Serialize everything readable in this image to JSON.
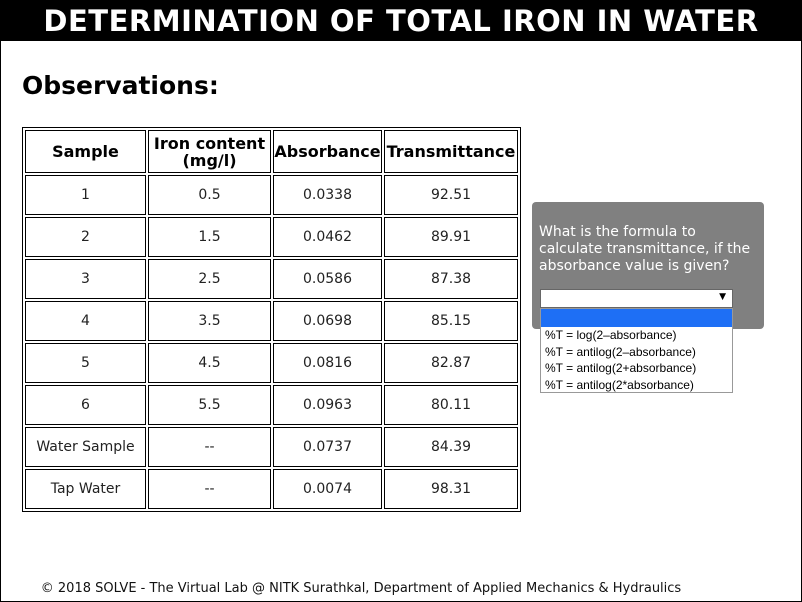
{
  "header": {
    "title": "DETERMINATION OF TOTAL IRON IN WATER"
  },
  "observations": {
    "title": "Observations:",
    "columns": [
      "Sample",
      "Iron content (mg/l)",
      "Absorbance",
      "Transmittance"
    ],
    "rows": [
      [
        "1",
        "0.5",
        "0.0338",
        "92.51"
      ],
      [
        "2",
        "1.5",
        "0.0462",
        "89.91"
      ],
      [
        "3",
        "2.5",
        "0.0586",
        "87.38"
      ],
      [
        "4",
        "3.5",
        "0.0698",
        "85.15"
      ],
      [
        "5",
        "4.5",
        "0.0816",
        "82.87"
      ],
      [
        "6",
        "5.5",
        "0.0963",
        "80.11"
      ],
      [
        "Water Sample",
        "--",
        "0.0737",
        "84.39"
      ],
      [
        "Tap Water",
        "--",
        "0.0074",
        "98.31"
      ]
    ]
  },
  "quiz": {
    "question": "What is the formula to calculate transmittance, if the absorbance value is given?",
    "selected": "",
    "options": [
      "",
      "%T = log(2–absorbance)",
      "%T = antilog(2–absorbance)",
      "%T = antilog(2+absorbance)",
      "%T = antilog(2*absorbance)"
    ]
  },
  "footer": {
    "text": "© 2018 SOLVE - The Virtual Lab @ NITK Surathkal, Department of Applied Mechanics & Hydraulics"
  },
  "colors": {
    "header_bg": "#000000",
    "quiz_bg": "#808080",
    "option_highlight": "#1e6ff5"
  },
  "icons": {
    "select_arrow": "chevron-down-icon"
  }
}
